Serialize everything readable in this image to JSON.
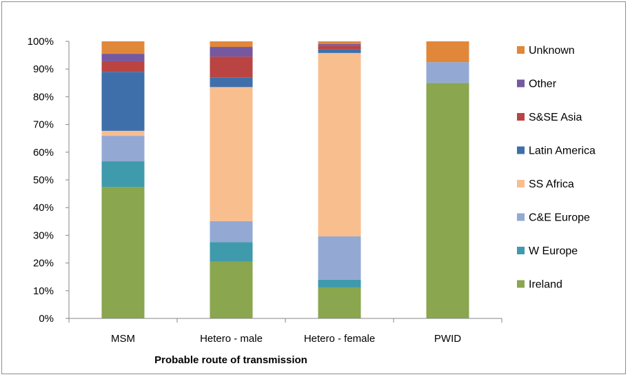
{
  "chart_data": {
    "type": "bar",
    "stacked": true,
    "percent": true,
    "title": "",
    "xlabel": "Probable route of transmission",
    "ylabel": "",
    "ylim": [
      0,
      100
    ],
    "yticks": [
      "0%",
      "10%",
      "20%",
      "30%",
      "40%",
      "50%",
      "60%",
      "70%",
      "80%",
      "90%",
      "100%"
    ],
    "categories": [
      "MSM",
      "Hetero - male",
      "Hetero - female",
      "PWID"
    ],
    "grid": false,
    "legend_position": "right",
    "series": [
      {
        "name": "Ireland",
        "color": "#8aa64e",
        "values": [
          47.5,
          20.5,
          11.2,
          85.0
        ]
      },
      {
        "name": "W Europe",
        "color": "#3f9aac",
        "values": [
          9.2,
          7.0,
          2.8,
          0.0
        ]
      },
      {
        "name": "C&E Europe",
        "color": "#93a9d3",
        "values": [
          9.2,
          7.6,
          15.6,
          7.5
        ]
      },
      {
        "name": "SS Africa",
        "color": "#f9be8e",
        "values": [
          1.8,
          48.4,
          66.2,
          0.0
        ]
      },
      {
        "name": "Latin America",
        "color": "#3f6faa",
        "values": [
          21.3,
          3.5,
          1.3,
          0.0
        ]
      },
      {
        "name": "S&SE Asia",
        "color": "#b94441",
        "values": [
          3.8,
          7.5,
          1.2,
          0.0
        ]
      },
      {
        "name": "Other",
        "color": "#7558a0",
        "values": [
          2.7,
          3.5,
          0.7,
          0.0
        ]
      },
      {
        "name": "Unknown",
        "color": "#e0873a",
        "values": [
          4.5,
          2.0,
          1.0,
          7.5
        ]
      }
    ]
  }
}
